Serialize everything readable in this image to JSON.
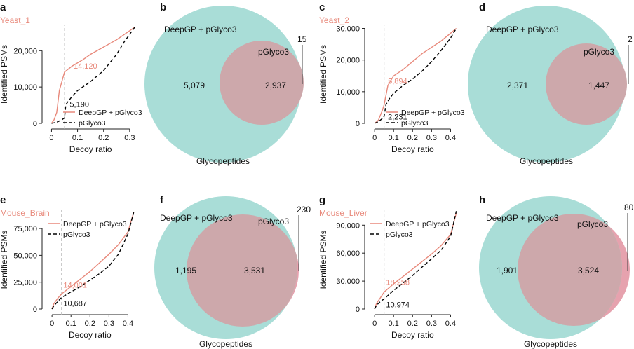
{
  "colors": {
    "deepgp_line": "#e8897b",
    "pglyco3_line": "#000000",
    "annotation_text": "#e8897b",
    "venn_teal": "#a9ddd7",
    "venn_pink": "#e6a2ae",
    "venn_overlap": "#cda8ab",
    "dashed_guide": "#bfbfbf",
    "dataset_label": "#e8897b"
  },
  "chart_data": [
    {
      "panel": "a",
      "type": "line",
      "dataset": "Yeast_1",
      "xlabel": "Decoy ratio",
      "ylabel": "Identified PSMs",
      "xlim": [
        -0.02,
        0.33
      ],
      "ylim": [
        0,
        27000
      ],
      "xticks": [
        0,
        0.1,
        0.2,
        0.3
      ],
      "xtick_labels": [
        "0",
        "0.1",
        "0.2",
        "0.3"
      ],
      "yticks": [
        0,
        10000,
        20000
      ],
      "ytick_labels": [
        "0",
        "10,000",
        "20,000"
      ],
      "cutoff": 0.05,
      "legend": "bottom-right",
      "series": [
        {
          "name": "DeepGP + pGlyco3",
          "style": "solid",
          "x": [
            0,
            0.01,
            0.02,
            0.03,
            0.05,
            0.08,
            0.12,
            0.15,
            0.2,
            0.25,
            0.3,
            0.32
          ],
          "y": [
            0,
            1000,
            3000,
            9000,
            14120,
            15800,
            17500,
            19000,
            21000,
            23000,
            25500,
            26500
          ]
        },
        {
          "name": "pGlyco3",
          "style": "dashed",
          "x": [
            0,
            0.02,
            0.04,
            0.05,
            0.055,
            0.08,
            0.1,
            0.15,
            0.2,
            0.25,
            0.28,
            0.32
          ],
          "y": [
            0,
            300,
            1000,
            1500,
            5190,
            7500,
            9000,
            11500,
            14500,
            19000,
            22500,
            26500
          ]
        }
      ],
      "annotations": [
        {
          "text": "14,120",
          "x": 0.085,
          "y": 15000,
          "color": "salmon"
        },
        {
          "text": "5,190",
          "x": 0.07,
          "y": 4500,
          "color": "black"
        }
      ]
    },
    {
      "panel": "b",
      "type": "venn",
      "xlabel": "Glycopeptides",
      "sets": [
        {
          "name": "DeepGP + pGlyco3",
          "only": 5079
        },
        {
          "name": "pGlyco3",
          "only": 15
        }
      ],
      "overlap": 2937,
      "labels": {
        "only_a": "5,079",
        "overlap": "2,937",
        "only_b": "15"
      }
    },
    {
      "panel": "c",
      "type": "line",
      "dataset": "Yeast_2",
      "xlabel": "Decoy ratio",
      "ylabel": "Identified PSMs",
      "xlim": [
        -0.03,
        0.45
      ],
      "ylim": [
        0,
        31000
      ],
      "xticks": [
        0,
        0.1,
        0.2,
        0.3,
        0.4
      ],
      "xtick_labels": [
        "0",
        "0.1",
        "0.2",
        "0.3",
        "0.4"
      ],
      "yticks": [
        0,
        10000,
        20000,
        30000
      ],
      "ytick_labels": [
        "0",
        "10,000",
        "20,000",
        "30,000"
      ],
      "cutoff": 0.05,
      "legend": "bottom-right",
      "series": [
        {
          "name": "DeepGP + pGlyco3",
          "style": "solid",
          "x": [
            0,
            0.02,
            0.04,
            0.05,
            0.07,
            0.1,
            0.15,
            0.2,
            0.25,
            0.3,
            0.35,
            0.4,
            0.43
          ],
          "y": [
            0,
            1000,
            4000,
            5894,
            12000,
            15000,
            17000,
            19500,
            22000,
            24000,
            26000,
            28500,
            30000
          ]
        },
        {
          "name": "pGlyco3",
          "style": "dashed",
          "x": [
            0,
            0.02,
            0.04,
            0.05,
            0.06,
            0.08,
            0.1,
            0.15,
            0.2,
            0.25,
            0.3,
            0.35,
            0.4,
            0.43
          ],
          "y": [
            0,
            500,
            1500,
            2231,
            6000,
            8000,
            9500,
            12000,
            14000,
            16500,
            19500,
            23000,
            27000,
            30000
          ]
        }
      ],
      "annotations": [
        {
          "text": "5,894",
          "x": 0.07,
          "y": 12500,
          "color": "salmon"
        },
        {
          "text": "2,231",
          "x": 0.07,
          "y": 1200,
          "color": "black"
        }
      ]
    },
    {
      "panel": "d",
      "type": "venn",
      "xlabel": "Glycopeptides",
      "sets": [
        {
          "name": "DeepGP + pGlyco3",
          "only": 2371
        },
        {
          "name": "pGlyco3",
          "only": 2
        }
      ],
      "overlap": 1447,
      "labels": {
        "only_a": "2,371",
        "overlap": "1,447",
        "only_b": "2"
      }
    },
    {
      "panel": "e",
      "type": "line",
      "dataset": "Mouse_Brain",
      "xlabel": "Decoy ratio",
      "ylabel": "Identified PSMs",
      "xlim": [
        -0.03,
        0.45
      ],
      "ylim": [
        0,
        92000
      ],
      "xticks": [
        0,
        0.1,
        0.2,
        0.3,
        0.4
      ],
      "xtick_labels": [
        "0",
        "0.1",
        "0.2",
        "0.3",
        "0.4"
      ],
      "yticks": [
        0,
        25000,
        50000,
        75000
      ],
      "ytick_labels": [
        "0",
        "25,000",
        "50,000",
        "75,000"
      ],
      "cutoff": 0.05,
      "legend": "top-left",
      "series": [
        {
          "name": "DeepGP + pGlyco3",
          "style": "solid",
          "x": [
            0,
            0.01,
            0.03,
            0.05,
            0.1,
            0.15,
            0.2,
            0.25,
            0.3,
            0.35,
            0.4,
            0.43
          ],
          "y": [
            0,
            5000,
            10000,
            14001,
            21000,
            28000,
            35000,
            43000,
            51000,
            60000,
            72000,
            90000
          ]
        },
        {
          "name": "pGlyco3",
          "style": "dashed",
          "x": [
            0,
            0.01,
            0.03,
            0.05,
            0.1,
            0.15,
            0.2,
            0.25,
            0.3,
            0.35,
            0.4,
            0.43
          ],
          "y": [
            0,
            3000,
            7000,
            10687,
            16000,
            21000,
            27000,
            33000,
            40000,
            51000,
            70000,
            90000
          ]
        }
      ],
      "annotations": [
        {
          "text": "14,001",
          "x": 0.06,
          "y": 20000,
          "color": "salmon"
        },
        {
          "text": "10,687",
          "x": 0.06,
          "y": 3000,
          "color": "black"
        }
      ]
    },
    {
      "panel": "f",
      "type": "venn",
      "xlabel": "Glycopeptides",
      "sets": [
        {
          "name": "DeepGP + pGlyco3",
          "only": 1195
        },
        {
          "name": "pGlyco3",
          "only": 230
        }
      ],
      "overlap": 3531,
      "labels": {
        "only_a": "1,195",
        "overlap": "3,531",
        "only_b": "230"
      }
    },
    {
      "panel": "g",
      "type": "line",
      "dataset": "Mouse_Liver",
      "xlabel": "Decoy ratio",
      "ylabel": "Identified PSMs",
      "xlim": [
        -0.03,
        0.45
      ],
      "ylim": [
        0,
        106000
      ],
      "xticks": [
        0,
        0.1,
        0.2,
        0.3,
        0.4
      ],
      "xtick_labels": [
        "0",
        "0.1",
        "0.2",
        "0.3",
        "0.4"
      ],
      "yticks": [
        0,
        30000,
        60000,
        90000
      ],
      "ytick_labels": [
        "0",
        "30,000",
        "60,000",
        "90,000"
      ],
      "cutoff": 0.05,
      "legend": "top-left",
      "series": [
        {
          "name": "DeepGP + pGlyco3",
          "style": "solid",
          "x": [
            0,
            0.01,
            0.03,
            0.05,
            0.1,
            0.15,
            0.2,
            0.25,
            0.3,
            0.35,
            0.4,
            0.43
          ],
          "y": [
            0,
            6000,
            12000,
            18258,
            27000,
            35000,
            43000,
            51000,
            59000,
            68000,
            80000,
            103000
          ]
        },
        {
          "name": "pGlyco3",
          "style": "dashed",
          "x": [
            0,
            0.01,
            0.03,
            0.05,
            0.1,
            0.15,
            0.2,
            0.25,
            0.3,
            0.35,
            0.4,
            0.43
          ],
          "y": [
            0,
            4000,
            8000,
            10974,
            20000,
            28000,
            36000,
            45000,
            54000,
            63000,
            78000,
            105000
          ]
        }
      ],
      "annotations": [
        {
          "text": "18,258",
          "x": 0.06,
          "y": 26000,
          "color": "salmon"
        },
        {
          "text": "10,974",
          "x": 0.06,
          "y": 2000,
          "color": "black"
        }
      ]
    },
    {
      "panel": "h",
      "type": "venn",
      "xlabel": "Glycopeptides",
      "sets": [
        {
          "name": "DeepGP + pGlyco3",
          "only": 1901
        },
        {
          "name": "pGlyco3",
          "only": 80
        }
      ],
      "overlap": 3524,
      "labels": {
        "only_a": "1,901",
        "overlap": "3,524",
        "only_b": "80"
      }
    }
  ]
}
